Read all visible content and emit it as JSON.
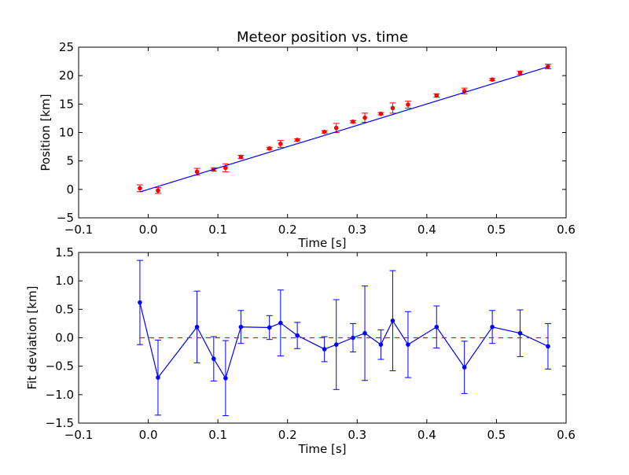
{
  "chart_data": [
    {
      "type": "scatter",
      "title": "Meteor position vs. time",
      "xlabel": "Time [s]",
      "ylabel": "Position [km]",
      "xlim": [
        -0.1,
        0.6
      ],
      "ylim": [
        -5,
        25
      ],
      "xticks": [
        "−0.1",
        "0.0",
        "0.1",
        "0.2",
        "0.3",
        "0.4",
        "0.5",
        "0.6"
      ],
      "yticks": [
        "−5",
        "0",
        "5",
        "10",
        "15",
        "20",
        "25"
      ],
      "grid": false,
      "series": [
        {
          "style": "errorbar-points",
          "color": "#ff0000",
          "points": [
            {
              "x": -0.012,
              "y": 0.2,
              "err": 0.6
            },
            {
              "x": 0.014,
              "y": -0.2,
              "err": 0.5
            },
            {
              "x": 0.07,
              "y": 3.1,
              "err": 0.6
            },
            {
              "x": 0.094,
              "y": 3.5,
              "err": 0.3
            },
            {
              "x": 0.111,
              "y": 3.8,
              "err": 0.7
            },
            {
              "x": 0.133,
              "y": 5.7,
              "err": 0.3
            },
            {
              "x": 0.174,
              "y": 7.2,
              "err": 0.2
            },
            {
              "x": 0.19,
              "y": 8.0,
              "err": 0.6
            },
            {
              "x": 0.214,
              "y": 8.7,
              "err": 0.2
            },
            {
              "x": 0.253,
              "y": 10.1,
              "err": 0.2
            },
            {
              "x": 0.27,
              "y": 10.8,
              "err": 0.8
            },
            {
              "x": 0.294,
              "y": 11.9,
              "err": 0.2
            },
            {
              "x": 0.311,
              "y": 12.6,
              "err": 0.8
            },
            {
              "x": 0.334,
              "y": 13.3,
              "err": 0.2
            },
            {
              "x": 0.351,
              "y": 14.3,
              "err": 0.9
            },
            {
              "x": 0.373,
              "y": 14.9,
              "err": 0.6
            },
            {
              "x": 0.414,
              "y": 16.5,
              "err": 0.3
            },
            {
              "x": 0.454,
              "y": 17.3,
              "err": 0.5
            },
            {
              "x": 0.494,
              "y": 19.3,
              "err": 0.2
            },
            {
              "x": 0.534,
              "y": 20.5,
              "err": 0.3
            },
            {
              "x": 0.574,
              "y": 21.6,
              "err": 0.4
            }
          ]
        },
        {
          "style": "line",
          "color": "#0000ff",
          "x": [
            -0.012,
            0.574
          ],
          "y": [
            -0.45,
            21.55
          ]
        }
      ]
    },
    {
      "type": "line",
      "title": "",
      "xlabel": "Time [s]",
      "ylabel": "Fit deviation [km]",
      "xlim": [
        -0.1,
        0.6
      ],
      "ylim": [
        -1.5,
        1.5
      ],
      "xticks": [
        "−0.1",
        "0.0",
        "0.1",
        "0.2",
        "0.3",
        "0.4",
        "0.5",
        "0.6"
      ],
      "yticks": [
        "−1.5",
        "−1.0",
        "−0.5",
        "0.0",
        "0.5",
        "1.0",
        "1.5"
      ],
      "grid": false,
      "series": [
        {
          "style": "errorbar-line",
          "color": "#0000ff",
          "points": [
            {
              "x": -0.012,
              "y": 0.62,
              "err": 0.74
            },
            {
              "x": 0.014,
              "y": -0.7,
              "err": 0.66
            },
            {
              "x": 0.07,
              "y": 0.19,
              "err": 0.63
            },
            {
              "x": 0.094,
              "y": -0.37,
              "err": 0.39
            },
            {
              "x": 0.111,
              "y": -0.71,
              "err": 0.66
            },
            {
              "x": 0.133,
              "y": 0.19,
              "err": 0.29
            },
            {
              "x": 0.174,
              "y": 0.18,
              "err": 0.21
            },
            {
              "x": 0.19,
              "y": 0.26,
              "err": 0.58
            },
            {
              "x": 0.214,
              "y": 0.04,
              "err": 0.23
            },
            {
              "x": 0.253,
              "y": -0.2,
              "err": 0.22
            },
            {
              "x": 0.27,
              "y": -0.12,
              "err": 0.79
            },
            {
              "x": 0.294,
              "y": 0.0,
              "err": 0.25
            },
            {
              "x": 0.311,
              "y": 0.08,
              "err": 0.83
            },
            {
              "x": 0.334,
              "y": -0.12,
              "err": 0.26
            },
            {
              "x": 0.351,
              "y": 0.3,
              "err": 0.88
            },
            {
              "x": 0.373,
              "y": -0.12,
              "err": 0.58
            },
            {
              "x": 0.414,
              "y": 0.19,
              "err": 0.37
            },
            {
              "x": 0.454,
              "y": -0.52,
              "err": 0.46
            },
            {
              "x": 0.494,
              "y": 0.19,
              "err": 0.29
            },
            {
              "x": 0.534,
              "y": 0.08,
              "err": 0.41
            },
            {
              "x": 0.574,
              "y": -0.15,
              "err": 0.4
            }
          ]
        },
        {
          "style": "dashed-line",
          "color": "#ff0000",
          "x": [
            -0.012,
            0.574
          ],
          "y": [
            0,
            0
          ]
        }
      ]
    }
  ]
}
